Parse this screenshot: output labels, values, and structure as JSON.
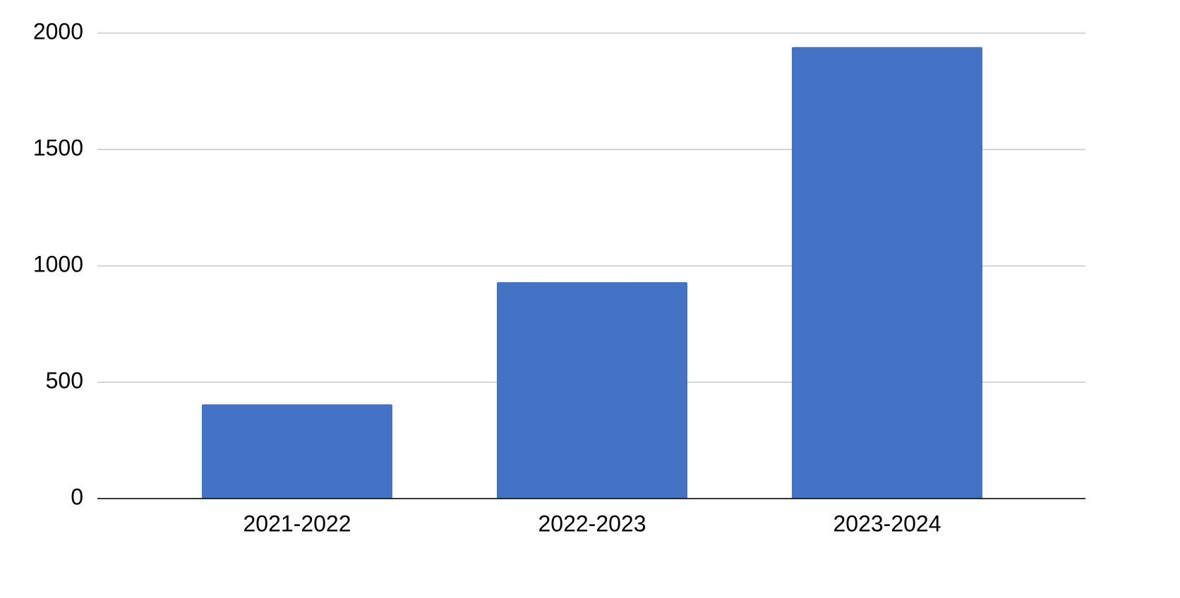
{
  "chart_data": {
    "type": "bar",
    "categories": [
      "2021-2022",
      "2022-2023",
      "2023-2024"
    ],
    "values": [
      405,
      930,
      1940
    ],
    "color": "#4472c4",
    "ylim": [
      0,
      2000
    ],
    "yticks": [
      0,
      500,
      1000,
      1500,
      2000
    ],
    "grid": true
  }
}
